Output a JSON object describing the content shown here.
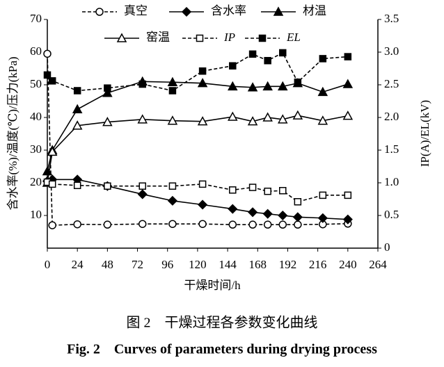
{
  "chart_data": {
    "type": "line",
    "xlabel": "干燥时间/h",
    "ylabel": "含水率(%)/温度(℃)/压力(kPa)",
    "y2label": "IP(A)/EL(kV)",
    "caption": "图 2　干燥过程各参数变化曲线",
    "caption_en": "Fig. 2　Curves of parameters during drying process",
    "x": [
      0,
      4,
      24,
      48,
      76,
      100,
      124,
      148,
      164,
      176,
      188,
      200,
      220,
      240
    ],
    "xlim": [
      0,
      264
    ],
    "xticks": [
      0,
      24,
      48,
      72,
      96,
      120,
      144,
      168,
      192,
      216,
      240,
      264
    ],
    "ylim": [
      0,
      70
    ],
    "yticks": [
      10,
      20,
      30,
      40,
      50,
      60,
      70
    ],
    "y2lim": [
      0,
      3.5
    ],
    "y2ticks": [
      0,
      0.5,
      {
        "value": 1,
        "label": "1.0"
      },
      1.5,
      {
        "value": 2,
        "label": "2.0"
      },
      2.5,
      {
        "value": 3,
        "label": "3.0"
      },
      3.5
    ],
    "series": [
      {
        "name": "真空",
        "color": "#000",
        "marker": "circle-open",
        "dashed": true,
        "values": [
          59.5,
          7,
          7.3,
          7.2,
          7.4,
          7.4,
          7.4,
          7.2,
          7.2,
          7.2,
          7.2,
          7.2,
          7.3,
          7.5
        ]
      },
      {
        "name": "含水率",
        "color": "#000",
        "marker": "diamond",
        "dashed": false,
        "values": [
          20.5,
          21,
          21,
          19,
          16.5,
          14.5,
          13.3,
          12,
          11,
          10.5,
          10,
          9.5,
          9.2,
          8.8
        ]
      },
      {
        "name": "材温",
        "color": "#000",
        "marker": "triangle",
        "dashed": false,
        "values": [
          23.5,
          30,
          42.5,
          47.5,
          51,
          50.8,
          50.5,
          49.5,
          49.2,
          49.5,
          49.5,
          50.5,
          47.8,
          50.2
        ]
      },
      {
        "name": "窑温",
        "color": "#000",
        "marker": "triangle-open",
        "dashed": false,
        "values": [
          20,
          29.5,
          37.5,
          38.6,
          39.4,
          39,
          38.8,
          40.2,
          38.8,
          40,
          39.4,
          40.6,
          39,
          40.5
        ]
      },
      {
        "name": "IP",
        "color": "#000",
        "marker": "square-open",
        "dashed": true,
        "axis": "y2",
        "values": [
          1.01,
          0.98,
          0.96,
          0.95,
          0.95,
          0.95,
          0.98,
          0.89,
          0.93,
          0.87,
          0.88,
          0.71,
          0.81,
          0.81
        ]
      },
      {
        "name": "EL",
        "color": "#000",
        "marker": "square",
        "dashed": true,
        "axis": "y2",
        "values": [
          2.65,
          2.56,
          2.41,
          2.45,
          2.51,
          2.41,
          2.71,
          2.79,
          2.97,
          2.87,
          2.99,
          2.54,
          2.9,
          2.93
        ]
      }
    ]
  }
}
